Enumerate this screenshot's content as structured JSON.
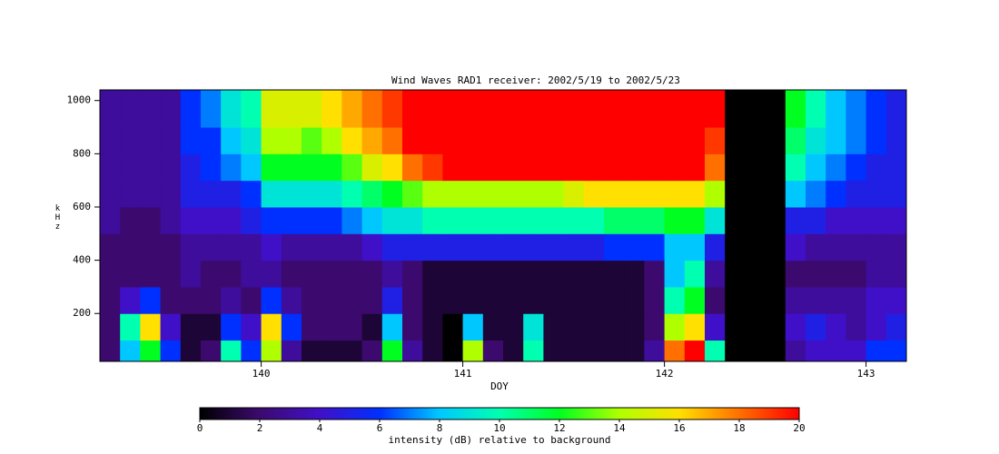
{
  "chart_data": {
    "type": "heatmap",
    "title": "Wind Waves RAD1 receiver: 2002/5/19 to 2002/5/23",
    "x_label": "DOY",
    "y_label": "kHz",
    "colorbar_label": "intensity (dB) relative to background",
    "xlim": [
      139.2,
      143.2
    ],
    "xticks": [
      140,
      141,
      142,
      143
    ],
    "ylim": [
      20,
      1040
    ],
    "yticks": [
      200,
      400,
      600,
      800,
      1000
    ],
    "clim": [
      0,
      20
    ],
    "cticks": [
      0,
      2,
      4,
      6,
      8,
      10,
      12,
      14,
      16,
      18,
      20
    ],
    "colormap": [
      "#000000",
      "#3c0a6e",
      "#4010c8",
      "#0030ff",
      "#00c8ff",
      "#00ffb0",
      "#00ff20",
      "#b0ff00",
      "#ffe000",
      "#ff7000",
      "#ff0000"
    ],
    "x_edges": [
      139.2,
      139.3,
      139.4,
      139.5,
      139.6,
      139.7,
      139.8,
      139.9,
      140.0,
      140.1,
      140.2,
      140.3,
      140.4,
      140.5,
      140.6,
      140.7,
      140.8,
      140.9,
      141.0,
      141.1,
      141.2,
      141.3,
      141.4,
      141.5,
      141.6,
      141.7,
      141.8,
      141.9,
      142.0,
      142.1,
      142.2,
      142.3,
      142.4,
      142.5,
      142.6,
      142.7,
      142.8,
      142.9,
      143.0,
      143.1,
      143.2
    ],
    "y_edges": [
      20,
      100,
      200,
      300,
      400,
      500,
      600,
      700,
      800,
      900,
      1040
    ],
    "z": [
      [
        2,
        8,
        12,
        6,
        1,
        2,
        10,
        6,
        14,
        3,
        1,
        1,
        1,
        2,
        12,
        3,
        1,
        0,
        14,
        2,
        1,
        10,
        1,
        1,
        1,
        1,
        1,
        3,
        18,
        20,
        10,
        0,
        0,
        0,
        3,
        4,
        4,
        4,
        6,
        6
      ],
      [
        2,
        10,
        16,
        4,
        1,
        1,
        6,
        4,
        16,
        6,
        2,
        2,
        2,
        1,
        8,
        2,
        1,
        0,
        8,
        1,
        1,
        9,
        1,
        1,
        1,
        1,
        1,
        2,
        14,
        16,
        4,
        0,
        0,
        0,
        4,
        5,
        4,
        3,
        4,
        5
      ],
      [
        2,
        4,
        6,
        2,
        2,
        2,
        3,
        2,
        6,
        3,
        2,
        2,
        2,
        2,
        5,
        2,
        1,
        1,
        1,
        1,
        1,
        1,
        1,
        1,
        1,
        1,
        1,
        2,
        10,
        12,
        2,
        0,
        0,
        0,
        3,
        3,
        3,
        3,
        4,
        4
      ],
      [
        2,
        2,
        2,
        2,
        3,
        2,
        2,
        3,
        3,
        2,
        2,
        2,
        2,
        2,
        3,
        2,
        1,
        1,
        1,
        1,
        1,
        1,
        1,
        1,
        1,
        1,
        1,
        2,
        8,
        10,
        3,
        0,
        0,
        0,
        2,
        2,
        2,
        2,
        3,
        3
      ],
      [
        2,
        2,
        2,
        2,
        3,
        3,
        3,
        3,
        4,
        3,
        3,
        3,
        3,
        4,
        5,
        5,
        5,
        5,
        5,
        5,
        5,
        5,
        5,
        5,
        5,
        6,
        6,
        6,
        8,
        8,
        5,
        0,
        0,
        0,
        4,
        3,
        3,
        3,
        3,
        3
      ],
      [
        3,
        2,
        2,
        3,
        4,
        4,
        4,
        5,
        6,
        6,
        6,
        6,
        7,
        8,
        9,
        9,
        10,
        10,
        10,
        10,
        10,
        10,
        10,
        10,
        10,
        11,
        11,
        11,
        12,
        12,
        9,
        0,
        0,
        0,
        5,
        5,
        4,
        4,
        4,
        4
      ],
      [
        3,
        3,
        3,
        3,
        5,
        5,
        5,
        6,
        9,
        9,
        9,
        9,
        10,
        11,
        12,
        13,
        14,
        14,
        14,
        14,
        14,
        14,
        14,
        15,
        16,
        16,
        16,
        16,
        16,
        16,
        14,
        0,
        0,
        0,
        8,
        7,
        6,
        5,
        5,
        5
      ],
      [
        3,
        3,
        3,
        3,
        5,
        6,
        7,
        8,
        12,
        12,
        12,
        12,
        13,
        15,
        16,
        18,
        19,
        20,
        20,
        20,
        20,
        20,
        20,
        20,
        20,
        20,
        20,
        20,
        20,
        20,
        18,
        0,
        0,
        0,
        10,
        8,
        7,
        6,
        5,
        5
      ],
      [
        3,
        3,
        3,
        3,
        6,
        6,
        8,
        9,
        14,
        14,
        13,
        14,
        16,
        17,
        18,
        20,
        20,
        20,
        20,
        20,
        20,
        20,
        20,
        20,
        20,
        20,
        20,
        20,
        20,
        20,
        19,
        0,
        0,
        0,
        11,
        9,
        8,
        7,
        6,
        5
      ],
      [
        3,
        3,
        3,
        3,
        6,
        7,
        9,
        10,
        15,
        15,
        15,
        16,
        17,
        18,
        19,
        20,
        20,
        20,
        20,
        20,
        20,
        20,
        20,
        20,
        20,
        20,
        20,
        20,
        20,
        20,
        20,
        0,
        0,
        0,
        12,
        10,
        8,
        7,
        6,
        5
      ]
    ]
  }
}
